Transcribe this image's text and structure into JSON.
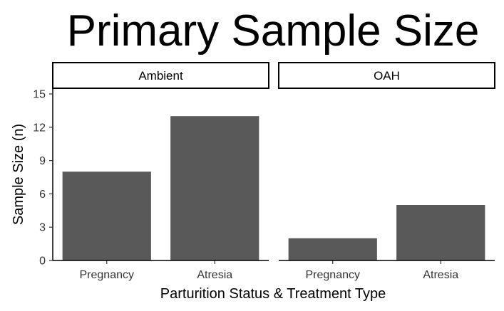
{
  "chart_data": {
    "type": "bar",
    "title": "Primary Sample Size",
    "xlabel": "Parturition Status & Treatment Type",
    "ylabel": "Sample Size (n)",
    "ylim": [
      0,
      15
    ],
    "yticks": [
      0,
      3,
      6,
      9,
      12,
      15
    ],
    "grid": false,
    "categories": [
      "Pregnancy",
      "Atresia"
    ],
    "bar_color": "#595959",
    "facets": [
      {
        "name": "Ambient",
        "values": [
          8,
          13
        ]
      },
      {
        "name": "OAH",
        "values": [
          2,
          5
        ]
      }
    ]
  }
}
